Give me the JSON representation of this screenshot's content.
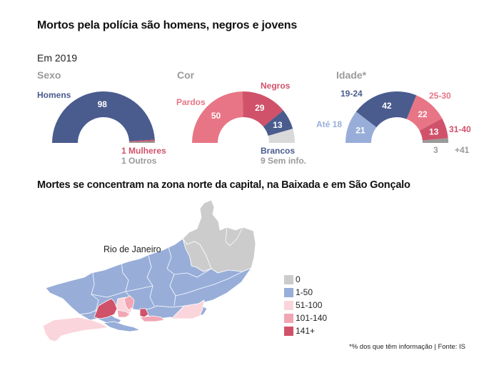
{
  "title": "Mortos pela polícia são homens, negros e jovens",
  "subtitle": "Em 2019",
  "map_title": "Mortes se concentram na zona norte da capital, na Baixada e em São Gonçalo",
  "map_label": "Rio de Janeiro",
  "source": "*% dos que têm informação | Fonte: IS",
  "colors": {
    "navy": "#4a5b8e",
    "light_blue": "#98aed9",
    "pink": "#e87585",
    "dark_pink": "#d0526a",
    "gray": "#9a9a9a",
    "light_gray": "#d9d9d9"
  },
  "legend": [
    {
      "label": "0",
      "color": "#cccccc"
    },
    {
      "label": "1-50",
      "color": "#98aed9"
    },
    {
      "label": "51-100",
      "color": "#fbd5dc"
    },
    {
      "label": "101-140",
      "color": "#f1a6b3"
    },
    {
      "label": "141+",
      "color": "#d0526a"
    }
  ],
  "chart_data": [
    {
      "type": "pie",
      "variant": "half-donut",
      "title": "Sexo",
      "slices": [
        {
          "label": "Homens",
          "value": 98,
          "color": "#4a5b8e",
          "value_label": "98"
        },
        {
          "label": "Mulheres",
          "value": 1,
          "color": "#d0526a"
        },
        {
          "label": "Outros",
          "value": 1,
          "color": "#9a9a9a"
        }
      ],
      "annotations": [
        "Homens",
        "1 Mulheres",
        "1 Outros"
      ]
    },
    {
      "type": "pie",
      "variant": "half-donut",
      "title": "Cor",
      "slices": [
        {
          "label": "Pardos",
          "value": 50,
          "color": "#e87585",
          "value_label": "50"
        },
        {
          "label": "Negros",
          "value": 29,
          "color": "#d0526a",
          "value_label": "29"
        },
        {
          "label": "Brancos",
          "value": 13,
          "color": "#4a5b8e",
          "value_label": "13"
        },
        {
          "label": "Sem info.",
          "value": 9,
          "color": "#d9d9d9"
        }
      ],
      "annotations": [
        "Pardos",
        "Negros",
        "Brancos",
        "9 Sem info."
      ]
    },
    {
      "type": "pie",
      "variant": "half-donut",
      "title": "Idade*",
      "slices": [
        {
          "label": "Até 18",
          "value": 21,
          "color": "#98aed9",
          "value_label": "21"
        },
        {
          "label": "19-24",
          "value": 42,
          "color": "#4a5b8e",
          "value_label": "42"
        },
        {
          "label": "25-30",
          "value": 22,
          "color": "#e87585",
          "value_label": "22"
        },
        {
          "label": "31-40",
          "value": 13,
          "color": "#d0526a",
          "value_label": "13"
        },
        {
          "label": "+41",
          "value": 3,
          "color": "#9a9a9a",
          "value_label": "3"
        }
      ],
      "annotations": [
        "Até 18",
        "19-24",
        "25-30",
        "31-40",
        "3",
        "+41"
      ]
    }
  ]
}
